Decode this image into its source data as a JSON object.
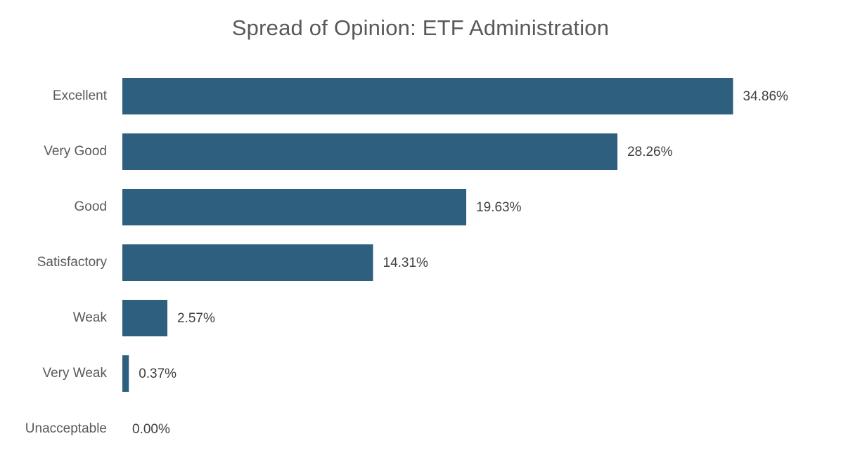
{
  "chart_data": {
    "type": "bar",
    "orientation": "horizontal",
    "title": "Spread of Opinion: ETF Administration",
    "xlabel": "",
    "ylabel": "",
    "categories": [
      "Excellent",
      "Very Good",
      "Good",
      "Satisfactory",
      "Weak",
      "Very Weak",
      "Unacceptable"
    ],
    "values": [
      34.86,
      28.26,
      19.63,
      14.31,
      2.57,
      0.37,
      0.0
    ],
    "value_labels": [
      "34.86%",
      "28.26%",
      "19.63%",
      "14.31%",
      "2.57%",
      "0.37%",
      "0.00%"
    ],
    "xlim": [
      0,
      35
    ],
    "grid": false,
    "legend": "none",
    "bar_color": "#2e5f7f"
  }
}
